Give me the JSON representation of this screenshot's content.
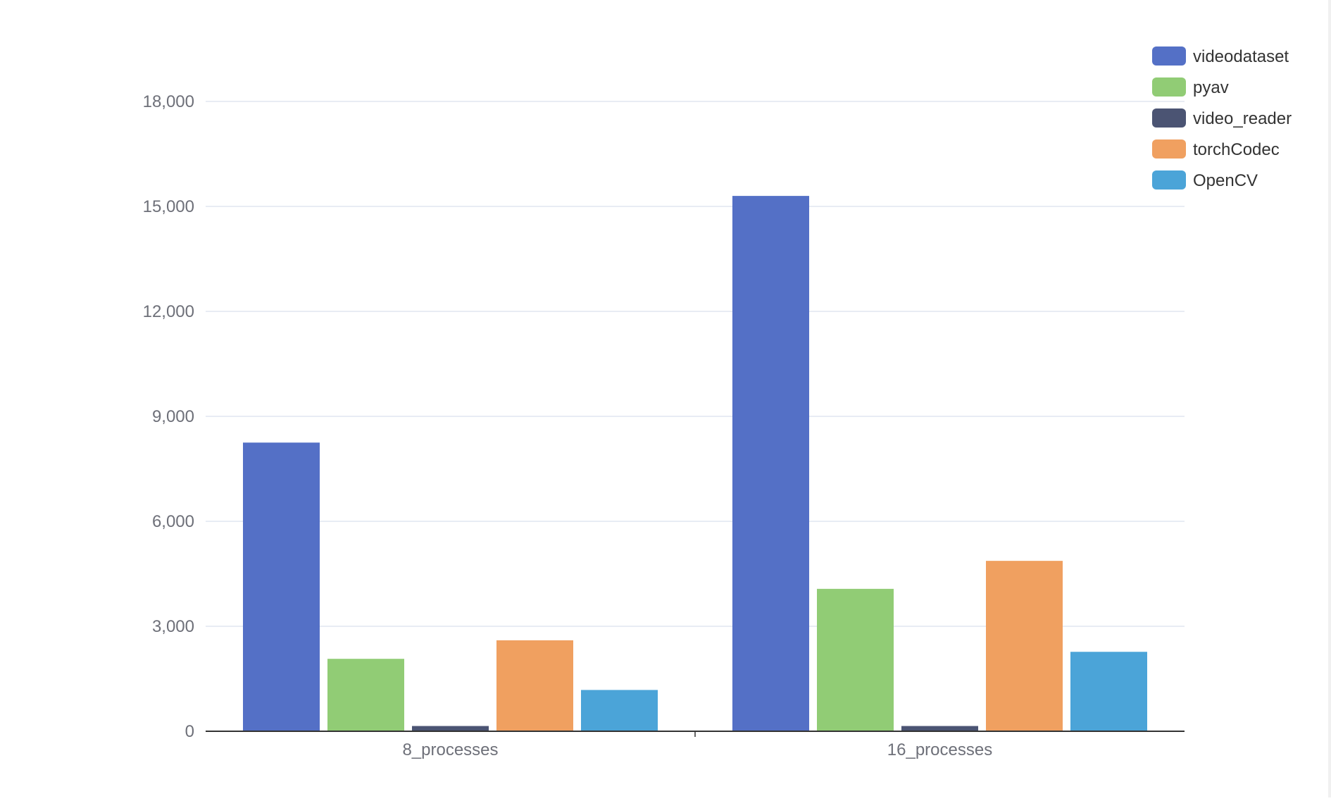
{
  "chart_data": {
    "type": "bar",
    "title": "",
    "xlabel": "",
    "ylabel": "",
    "categories": [
      "8_processes",
      "16_processes"
    ],
    "ylim": [
      0,
      18000
    ],
    "yticks": [
      0,
      3000,
      6000,
      9000,
      12000,
      15000,
      18000
    ],
    "ytick_labels": [
      "0",
      "3,000",
      "6,000",
      "9,000",
      "12,000",
      "15,000",
      "18,000"
    ],
    "grid": true,
    "legend_position": "top-right",
    "series": [
      {
        "name": "videodataset",
        "color": "#5470c6",
        "values": [
          8250,
          15300
        ]
      },
      {
        "name": "pyav",
        "color": "#91cc75",
        "values": [
          2070,
          4070
        ]
      },
      {
        "name": "video_reader",
        "color": "#4b5473",
        "values": [
          150,
          150
        ]
      },
      {
        "name": "torchCodec",
        "color": "#f0a060",
        "values": [
          2600,
          4870
        ]
      },
      {
        "name": "OpenCV",
        "color": "#4ba4d8",
        "values": [
          1180,
          2270
        ]
      }
    ]
  }
}
